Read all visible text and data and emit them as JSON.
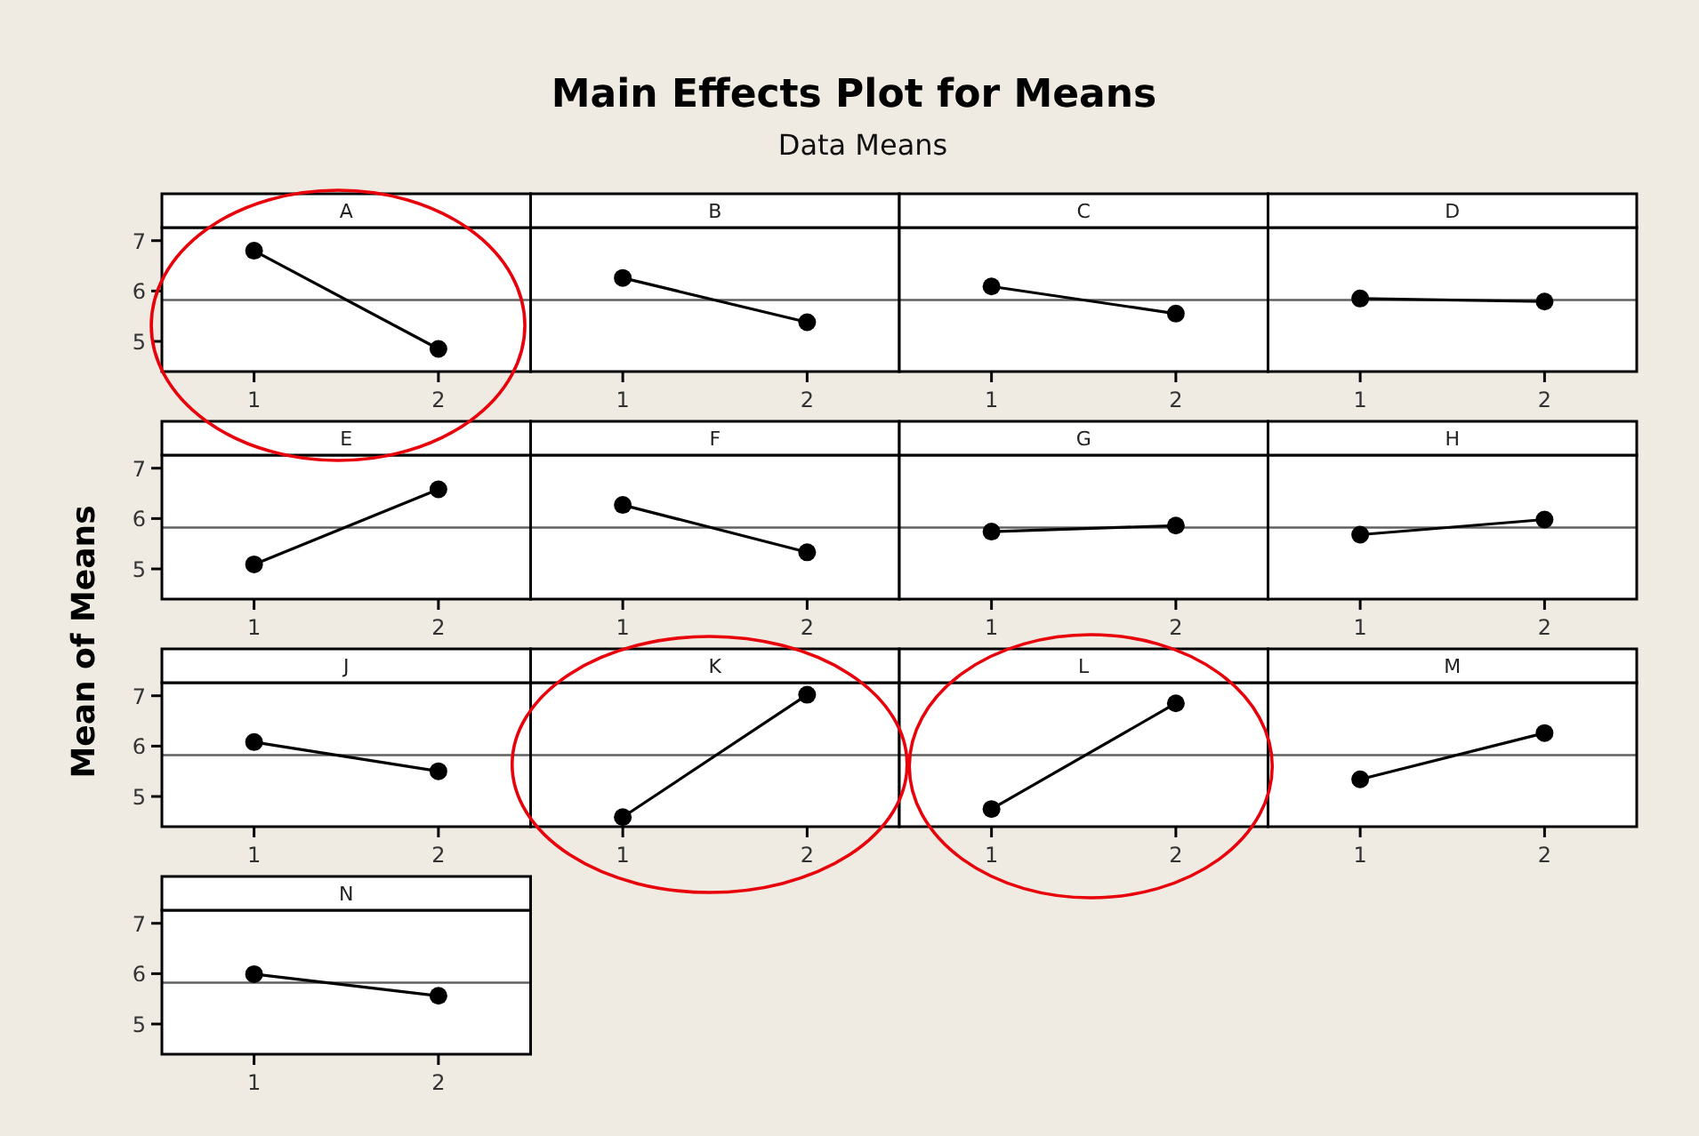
{
  "chart_data": [
    {
      "type": "other",
      "title": "Main Effects Plot for Means",
      "subtitle": "Data Means",
      "ylabel": "Mean of Means"
    },
    {
      "type": "line",
      "title": "A",
      "categories": [
        "1",
        "2"
      ],
      "values": [
        6.8,
        4.85
      ],
      "color": "#000000",
      "marker": "circle",
      "ylim": [
        4.4,
        7.26
      ],
      "yticks": [
        5,
        6,
        7
      ],
      "ref_lines": [
        {
          "axis": "y",
          "value": 5.82,
          "color": "#606060"
        }
      ]
    },
    {
      "type": "line",
      "title": "B",
      "categories": [
        "1",
        "2"
      ],
      "values": [
        6.26,
        5.38
      ],
      "color": "#000000",
      "marker": "circle",
      "ylim": [
        4.4,
        7.26
      ],
      "ref_lines": [
        {
          "axis": "y",
          "value": 5.82,
          "color": "#606060"
        }
      ],
      "tick_labels": "x"
    },
    {
      "type": "line",
      "title": "C",
      "categories": [
        "1",
        "2"
      ],
      "values": [
        6.09,
        5.55
      ],
      "color": "#000000",
      "marker": "circle",
      "ylim": [
        4.4,
        7.26
      ],
      "ref_lines": [
        {
          "axis": "y",
          "value": 5.82,
          "color": "#606060"
        }
      ],
      "tick_labels": "x"
    },
    {
      "type": "line",
      "title": "D",
      "categories": [
        "1",
        "2"
      ],
      "values": [
        5.85,
        5.79
      ],
      "color": "#000000",
      "marker": "circle",
      "ylim": [
        4.4,
        7.26
      ],
      "ref_lines": [
        {
          "axis": "y",
          "value": 5.82,
          "color": "#606060"
        }
      ],
      "tick_labels": "x"
    },
    {
      "type": "line",
      "title": "E",
      "categories": [
        "1",
        "2"
      ],
      "values": [
        5.09,
        6.58
      ],
      "color": "#000000",
      "marker": "circle",
      "ylim": [
        4.4,
        7.26
      ],
      "yticks": [
        5,
        6,
        7
      ],
      "ref_lines": [
        {
          "axis": "y",
          "value": 5.82,
          "color": "#606060"
        }
      ]
    },
    {
      "type": "line",
      "title": "F",
      "categories": [
        "1",
        "2"
      ],
      "values": [
        6.27,
        5.33
      ],
      "color": "#000000",
      "marker": "circle",
      "ylim": [
        4.4,
        7.26
      ],
      "ref_lines": [
        {
          "axis": "y",
          "value": 5.82,
          "color": "#606060"
        }
      ],
      "tick_labels": "x"
    },
    {
      "type": "line",
      "title": "G",
      "categories": [
        "1",
        "2"
      ],
      "values": [
        5.74,
        5.86
      ],
      "color": "#000000",
      "marker": "circle",
      "ylim": [
        4.4,
        7.26
      ],
      "ref_lines": [
        {
          "axis": "y",
          "value": 5.82,
          "color": "#606060"
        }
      ],
      "tick_labels": "x"
    },
    {
      "type": "line",
      "title": "H",
      "categories": [
        "1",
        "2"
      ],
      "values": [
        5.68,
        5.98
      ],
      "color": "#000000",
      "marker": "circle",
      "ylim": [
        4.4,
        7.26
      ],
      "ref_lines": [
        {
          "axis": "y",
          "value": 5.82,
          "color": "#606060"
        }
      ],
      "tick_labels": "x"
    },
    {
      "type": "line",
      "title": "J",
      "categories": [
        "1",
        "2"
      ],
      "values": [
        6.08,
        5.5
      ],
      "color": "#000000",
      "marker": "circle",
      "ylim": [
        4.4,
        7.26
      ],
      "yticks": [
        5,
        6,
        7
      ],
      "ref_lines": [
        {
          "axis": "y",
          "value": 5.82,
          "color": "#606060"
        }
      ]
    },
    {
      "type": "line",
      "title": "K",
      "categories": [
        "1",
        "2"
      ],
      "values": [
        4.59,
        7.02
      ],
      "color": "#000000",
      "marker": "circle",
      "ylim": [
        4.4,
        7.26
      ],
      "ref_lines": [
        {
          "axis": "y",
          "value": 5.82,
          "color": "#606060"
        }
      ],
      "tick_labels": "x"
    },
    {
      "type": "line",
      "title": "L",
      "categories": [
        "1",
        "2"
      ],
      "values": [
        4.75,
        6.85
      ],
      "color": "#000000",
      "marker": "circle",
      "ylim": [
        4.4,
        7.26
      ],
      "ref_lines": [
        {
          "axis": "y",
          "value": 5.82,
          "color": "#606060"
        }
      ],
      "tick_labels": "x"
    },
    {
      "type": "line",
      "title": "M",
      "categories": [
        "1",
        "2"
      ],
      "values": [
        5.34,
        6.26
      ],
      "color": "#000000",
      "marker": "circle",
      "ylim": [
        4.4,
        7.26
      ],
      "ref_lines": [
        {
          "axis": "y",
          "value": 5.82,
          "color": "#606060"
        }
      ],
      "tick_labels": "x"
    },
    {
      "type": "line",
      "title": "N",
      "categories": [
        "1",
        "2"
      ],
      "values": [
        5.99,
        5.56
      ],
      "color": "#000000",
      "marker": "circle",
      "ylim": [
        4.4,
        7.26
      ],
      "yticks": [
        5,
        6,
        7
      ],
      "ref_lines": [
        {
          "axis": "y",
          "value": 5.82,
          "color": "#606060"
        }
      ]
    }
  ]
}
